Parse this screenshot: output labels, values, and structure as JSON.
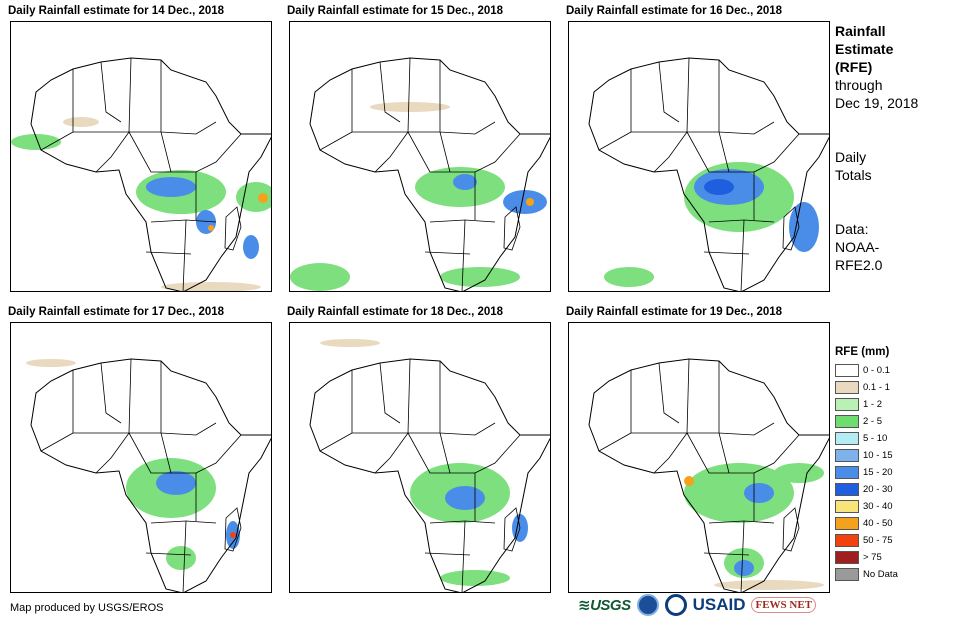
{
  "panels": [
    {
      "title": "Daily Rainfall estimate for 14 Dec., 2018"
    },
    {
      "title": "Daily Rainfall estimate for 15 Dec., 2018"
    },
    {
      "title": "Daily Rainfall estimate for 16 Dec., 2018"
    },
    {
      "title": "Daily Rainfall estimate for 17 Dec., 2018"
    },
    {
      "title": "Daily Rainfall estimate for 18 Dec., 2018"
    },
    {
      "title": "Daily Rainfall estimate for 19 Dec., 2018"
    }
  ],
  "sidebar": {
    "heading_line1": "Rainfall",
    "heading_line2": "Estimate",
    "heading_line3": "(RFE)",
    "through_label": "through",
    "through_date": "Dec 19, 2018",
    "totals_line1": "Daily",
    "totals_line2": "Totals",
    "data_line1": "Data:",
    "data_line2": "NOAA-",
    "data_line3": "RFE2.0"
  },
  "legend": {
    "title": "RFE (mm)",
    "items": [
      {
        "label": "0 - 0.1",
        "color": "#ffffff"
      },
      {
        "label": "0.1 - 1",
        "color": "#e9d9bf"
      },
      {
        "label": "1 - 2",
        "color": "#b9f0b4"
      },
      {
        "label": "2 - 5",
        "color": "#6fdc6f"
      },
      {
        "label": "5 - 10",
        "color": "#b4ecf4"
      },
      {
        "label": "10 - 15",
        "color": "#7fb2ec"
      },
      {
        "label": "15 - 20",
        "color": "#4a8de8"
      },
      {
        "label": "20 - 30",
        "color": "#1e5fe0"
      },
      {
        "label": "30 - 40",
        "color": "#f8e47a"
      },
      {
        "label": "40 - 50",
        "color": "#f4a21c"
      },
      {
        "label": "50 - 75",
        "color": "#f2420f"
      },
      {
        "label": "> 75",
        "color": "#a11e1e"
      },
      {
        "label": "No Data",
        "color": "#9a9a9a"
      }
    ]
  },
  "footer": {
    "credit": "Map produced by USGS/EROS"
  },
  "logos": {
    "usgs": "≋USGS",
    "usaid_main": "USAID",
    "fews": "FEWS NET"
  }
}
